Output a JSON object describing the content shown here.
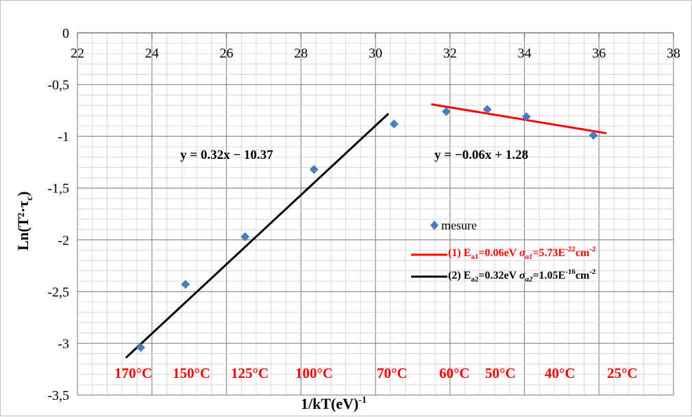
{
  "chart_data": {
    "type": "scatter",
    "xlabel": "1/kT(eV)",
    "xlabel_sup": "-1",
    "ylabel": "Ln(T²·τ",
    "ylabel_sub": "c",
    "ylabel_end": ")",
    "xlim": [
      22,
      38
    ],
    "ylim": [
      -3.5,
      0
    ],
    "x_ticks": [
      22,
      24,
      26,
      28,
      30,
      32,
      34,
      36,
      38
    ],
    "x_tick_labels": [
      "22",
      "24",
      "26",
      "28",
      "30",
      "32",
      "34",
      "36",
      "38"
    ],
    "y_ticks": [
      0,
      -0.5,
      -1,
      -1.5,
      -2,
      -2.5,
      -3,
      -3.5
    ],
    "y_tick_labels": [
      "0",
      "-0,5",
      "-1",
      "-1,5",
      "-2",
      "-2,5",
      "-3",
      "-3,5"
    ],
    "x_axis_position": "top",
    "grid": true,
    "series": [
      {
        "name": "mesure",
        "kind": "points",
        "marker": "diamond",
        "color": "#4a7ebb",
        "x": [
          23.7,
          24.9,
          26.5,
          28.35,
          30.5,
          31.9,
          33.0,
          34.05,
          35.85
        ],
        "y": [
          -3.04,
          -2.43,
          -1.97,
          -1.32,
          -0.88,
          -0.76,
          -0.74,
          -0.81,
          -0.99
        ]
      },
      {
        "name": "(1) E",
        "name_sub": "a1",
        "name_mid": "=0.06eV ",
        "name_sigma": "σ",
        "name_sigma_sub": "a1",
        "name_val": "=5.73E",
        "name_exp": "-22",
        "name_unit": "cm",
        "name_unit_exp": "-2",
        "kind": "line",
        "color": "#ff0000",
        "x": [
          31.5,
          36.2
        ],
        "y": [
          -0.69,
          -0.97
        ]
      },
      {
        "name": "(2) E",
        "name_sub": "a2",
        "name_mid": "=0.32eV ",
        "name_sigma": "σ",
        "name_sigma_sub": "a2",
        "name_val": "=1.05E",
        "name_exp": "-16",
        "name_unit": "cm",
        "name_unit_exp": "-2",
        "kind": "line",
        "color": "#000000",
        "x": [
          23.3,
          30.35
        ],
        "y": [
          -3.14,
          -0.78
        ]
      }
    ],
    "annotations": [
      {
        "text": "y = 0.32x − 10.37",
        "color": "#000000"
      },
      {
        "text": "y = −0.06x + 1.28",
        "color": "#ff0000"
      }
    ],
    "temperature_labels": [
      "170°C",
      "150°C",
      "125°C",
      "100°C",
      "70°C",
      "60°C",
      "50°C",
      "40°C",
      "25°C"
    ],
    "legend_position": "right"
  }
}
